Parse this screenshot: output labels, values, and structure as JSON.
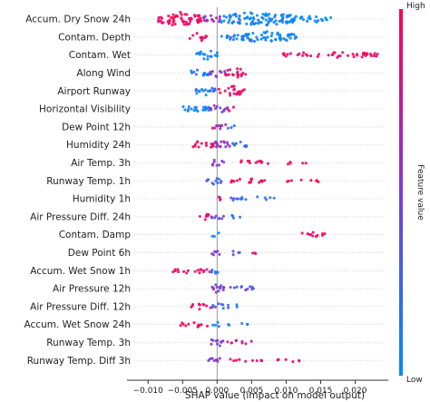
{
  "chart_data": {
    "type": "scatter",
    "subtype": "shap-beeswarm",
    "xlabel": "SHAP value (impact on model output)",
    "xlim": [
      -0.012,
      0.024
    ],
    "xticks": [
      -0.01,
      -0.005,
      0.0,
      0.005,
      0.01,
      0.015,
      0.02
    ],
    "xtick_labels": [
      "−0.010",
      "−0.005",
      "0.000",
      "0.005",
      "0.010",
      "0.015",
      "0.020"
    ],
    "grid": false,
    "colorbar": {
      "label": "Feature value",
      "high_label": "High",
      "low_label": "Low",
      "high_color": "#ff0052",
      "low_color": "#008bfb"
    },
    "features": [
      {
        "name": "Accum. Dry Snow 24h",
        "segments": [
          [
            -0.0085,
            -0.002,
            0.95,
            1.0
          ],
          [
            -0.002,
            0.0005,
            0.6,
            0.7
          ],
          [
            0.0005,
            0.0115,
            0.05,
            1.0
          ],
          [
            0.0115,
            0.0165,
            0.0,
            0.4
          ]
        ]
      },
      {
        "name": "Contam. Depth",
        "segments": [
          [
            -0.004,
            -0.0015,
            0.9,
            0.55
          ],
          [
            0.0005,
            0.0035,
            0.1,
            0.4
          ],
          [
            0.0035,
            0.0115,
            0.05,
            0.8
          ]
        ]
      },
      {
        "name": "Contam. Wet",
        "segments": [
          [
            -0.003,
            0.0002,
            0.02,
            0.6
          ],
          [
            0.0095,
            0.0235,
            0.95,
            0.35
          ]
        ]
      },
      {
        "name": "Along Wind",
        "segments": [
          [
            -0.004,
            -0.001,
            0.12,
            0.55
          ],
          [
            -0.001,
            0.0012,
            0.55,
            0.5
          ],
          [
            0.0012,
            0.0045,
            0.9,
            0.65
          ]
        ]
      },
      {
        "name": "Airport Runway",
        "segments": [
          [
            -0.0035,
            0.0002,
            0.12,
            0.55
          ],
          [
            0.0002,
            0.004,
            0.92,
            0.65
          ]
        ]
      },
      {
        "name": "Horizontal Visibility",
        "segments": [
          [
            -0.006,
            -0.001,
            0.05,
            0.45
          ],
          [
            -0.001,
            0.0015,
            0.5,
            0.55
          ],
          [
            0.0015,
            0.0025,
            0.9,
            0.3
          ]
        ]
      },
      {
        "name": "Dew Point 12h",
        "segments": [
          [
            -0.001,
            0.0,
            0.85,
            0.3
          ],
          [
            0.0,
            0.0015,
            0.6,
            0.45
          ],
          [
            0.0015,
            0.0025,
            0.1,
            0.3
          ]
        ]
      },
      {
        "name": "Humidity 24h",
        "segments": [
          [
            -0.0035,
            -0.0005,
            0.92,
            0.55
          ],
          [
            -0.0005,
            0.002,
            0.6,
            0.7
          ],
          [
            0.002,
            0.0045,
            0.2,
            0.4
          ]
        ]
      },
      {
        "name": "Air Temp. 3h",
        "segments": [
          [
            -0.001,
            0.001,
            0.55,
            0.45
          ],
          [
            0.002,
            0.0075,
            0.92,
            0.25
          ],
          [
            0.0095,
            0.013,
            0.95,
            0.15
          ]
        ]
      },
      {
        "name": "Runway Temp. 1h",
        "segments": [
          [
            -0.0015,
            0.001,
            0.3,
            0.5
          ],
          [
            0.001,
            0.007,
            0.9,
            0.3
          ],
          [
            0.0095,
            0.0155,
            0.95,
            0.15
          ]
        ]
      },
      {
        "name": "Humidity 1h",
        "segments": [
          [
            -0.0008,
            0.0005,
            0.85,
            0.35
          ],
          [
            0.001,
            0.003,
            0.3,
            0.2
          ],
          [
            0.003,
            0.0085,
            0.1,
            0.2
          ]
        ]
      },
      {
        "name": "Air Pressure Diff. 24h",
        "segments": [
          [
            -0.0035,
            -0.001,
            0.9,
            0.4
          ],
          [
            -0.001,
            0.001,
            0.5,
            0.45
          ],
          [
            0.0015,
            0.0035,
            0.1,
            0.2
          ]
        ]
      },
      {
        "name": "Contam. Damp",
        "segments": [
          [
            -0.0008,
            0.0004,
            0.05,
            0.3
          ],
          [
            0.0115,
            0.0165,
            0.95,
            0.25
          ]
        ]
      },
      {
        "name": "Dew Point 6h",
        "segments": [
          [
            -0.0008,
            0.0008,
            0.5,
            0.4
          ],
          [
            0.001,
            0.0035,
            0.3,
            0.2
          ],
          [
            0.0045,
            0.006,
            0.9,
            0.15
          ]
        ]
      },
      {
        "name": "Accum. Wet Snow 1h",
        "segments": [
          [
            -0.0065,
            -0.001,
            0.92,
            0.35
          ],
          [
            -0.001,
            0.0005,
            0.15,
            0.35
          ]
        ]
      },
      {
        "name": "Air Pressure 12h",
        "segments": [
          [
            -0.0015,
            0.0012,
            0.5,
            0.55
          ],
          [
            0.0012,
            0.006,
            0.35,
            0.25
          ]
        ]
      },
      {
        "name": "Air Pressure Diff. 12h",
        "segments": [
          [
            -0.004,
            -0.0008,
            0.95,
            0.35
          ],
          [
            -0.0008,
            0.001,
            0.3,
            0.45
          ],
          [
            0.001,
            0.0035,
            0.2,
            0.2
          ]
        ]
      },
      {
        "name": "Accum. Wet Snow 24h",
        "segments": [
          [
            -0.0055,
            -0.0008,
            0.92,
            0.3
          ],
          [
            -0.0008,
            0.0005,
            0.1,
            0.35
          ],
          [
            0.001,
            0.0045,
            0.05,
            0.15
          ]
        ]
      },
      {
        "name": "Runway Temp. 3h",
        "segments": [
          [
            -0.0012,
            0.001,
            0.55,
            0.5
          ],
          [
            0.0015,
            0.0055,
            0.8,
            0.25
          ]
        ]
      },
      {
        "name": "Runway Temp. Diff 3h",
        "segments": [
          [
            -0.0013,
            0.001,
            0.5,
            0.45
          ],
          [
            0.0015,
            0.0065,
            0.9,
            0.2
          ],
          [
            0.0085,
            0.0145,
            0.95,
            0.12
          ]
        ]
      }
    ]
  }
}
